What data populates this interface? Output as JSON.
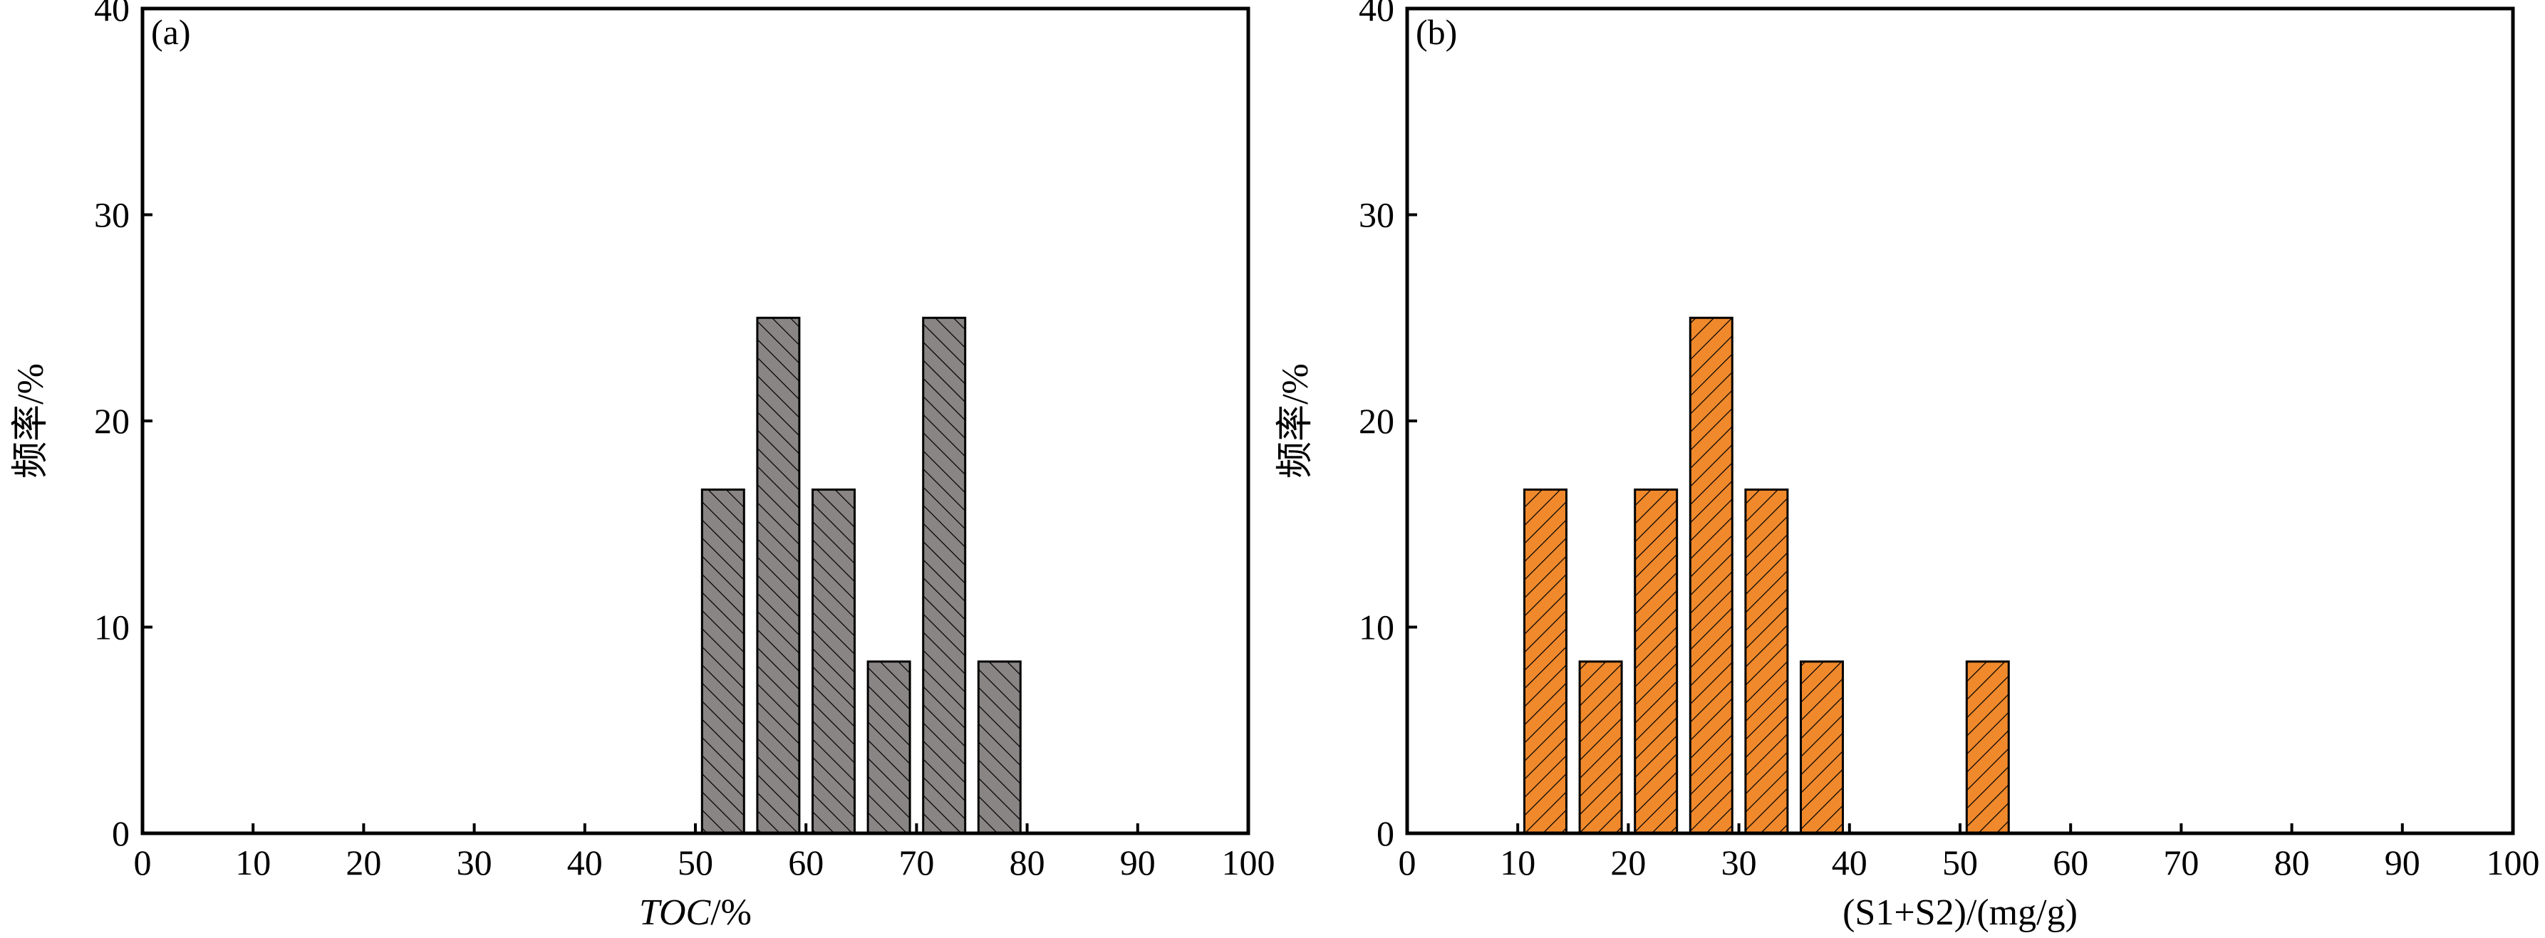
{
  "chart_data": [
    {
      "type": "bar",
      "panel_label": "(a)",
      "title": "",
      "xlabel": "TOC/%",
      "xlabel_parts": [
        "TOC",
        "/%"
      ],
      "ylabel": "频率/%",
      "xlim": [
        0,
        100
      ],
      "ylim": [
        0,
        40
      ],
      "xticks": [
        0,
        10,
        20,
        30,
        40,
        50,
        60,
        70,
        80,
        90,
        100
      ],
      "yticks": [
        0,
        10,
        20,
        30,
        40
      ],
      "bin_width": 5,
      "bins": [
        {
          "start": 50,
          "end": 55,
          "value": 16.67
        },
        {
          "start": 55,
          "end": 60,
          "value": 25
        },
        {
          "start": 60,
          "end": 65,
          "value": 16.67
        },
        {
          "start": 65,
          "end": 70,
          "value": 8.33
        },
        {
          "start": 70,
          "end": 75,
          "value": 25
        },
        {
          "start": 75,
          "end": 80,
          "value": 8.33
        }
      ],
      "bar_color": "#8a8585",
      "hatch": "backslash"
    },
    {
      "type": "bar",
      "panel_label": "(b)",
      "title": "",
      "xlabel": "(S1+S2)/(mg/g)",
      "ylabel": "频率/%",
      "xlim": [
        0,
        100
      ],
      "ylim": [
        0,
        40
      ],
      "xticks": [
        0,
        10,
        20,
        30,
        40,
        50,
        60,
        70,
        80,
        90,
        100
      ],
      "yticks": [
        0,
        10,
        20,
        30,
        40
      ],
      "bin_width": 5,
      "bins": [
        {
          "start": 10,
          "end": 15,
          "value": 16.67
        },
        {
          "start": 15,
          "end": 20,
          "value": 8.33
        },
        {
          "start": 20,
          "end": 25,
          "value": 16.67
        },
        {
          "start": 25,
          "end": 30,
          "value": 25
        },
        {
          "start": 30,
          "end": 35,
          "value": 16.67
        },
        {
          "start": 35,
          "end": 40,
          "value": 8.33
        },
        {
          "start": 50,
          "end": 55,
          "value": 8.33
        }
      ],
      "bar_color": "#f0892c",
      "hatch": "slash"
    }
  ]
}
